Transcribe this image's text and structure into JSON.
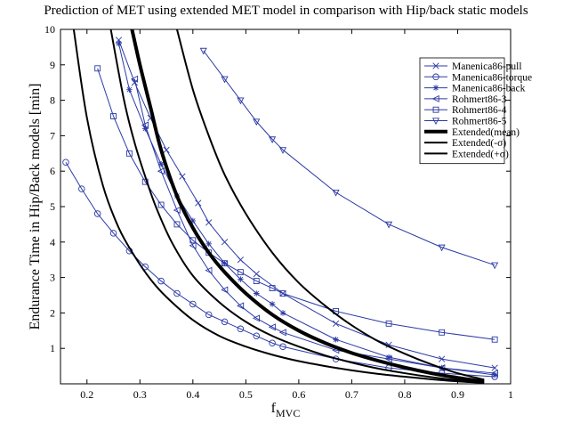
{
  "chart_data": {
    "type": "line",
    "title": "Prediction of MET using extended MET model in comparison with Hip/back static models",
    "xlabel": "f",
    "xlabel_sub": "MVC",
    "ylabel": "Endurance Time in Hip/Back models [min]",
    "xlim": [
      0.15,
      1.0
    ],
    "ylim": [
      0,
      10
    ],
    "xticks": [
      0.2,
      0.3,
      0.4,
      0.5,
      0.6,
      0.7,
      0.8,
      0.9,
      1
    ],
    "yticks": [
      1,
      2,
      3,
      4,
      5,
      6,
      7,
      8,
      9,
      10
    ],
    "xtick_labels": [
      "0.2",
      "0.3",
      "0.4",
      "0.5",
      "0.6",
      "0.7",
      "0.8",
      "0.9",
      "1"
    ],
    "ytick_labels": [
      "1",
      "2",
      "3",
      "4",
      "5",
      "6",
      "7",
      "8",
      "9",
      "10"
    ],
    "grid": false,
    "legend_position": "top-right",
    "colors": {
      "model_series": "#2b3aa6",
      "extended": "#000000"
    },
    "series": [
      {
        "name": "Manenica86-pull",
        "marker": "x",
        "color": "#2b3aa6",
        "width": 1,
        "x": [
          0.26,
          0.29,
          0.32,
          0.35,
          0.38,
          0.41,
          0.43,
          0.46,
          0.49,
          0.52,
          0.57,
          0.67,
          0.77,
          0.87,
          0.97
        ],
        "y": [
          9.7,
          8.5,
          7.5,
          6.6,
          5.85,
          5.1,
          4.55,
          4.0,
          3.5,
          3.1,
          2.55,
          1.7,
          1.1,
          0.7,
          0.45
        ]
      },
      {
        "name": "Manenica86-torque",
        "marker": "circle",
        "color": "#2b3aa6",
        "width": 1,
        "x": [
          0.16,
          0.19,
          0.22,
          0.25,
          0.28,
          0.31,
          0.34,
          0.37,
          0.4,
          0.43,
          0.46,
          0.49,
          0.52,
          0.55,
          0.57,
          0.67,
          0.77,
          0.87,
          0.97
        ],
        "y": [
          6.25,
          5.5,
          4.8,
          4.25,
          3.75,
          3.3,
          2.9,
          2.55,
          2.25,
          1.95,
          1.75,
          1.55,
          1.35,
          1.15,
          1.05,
          0.7,
          0.45,
          0.3,
          0.2
        ]
      },
      {
        "name": "Manenica86-back",
        "marker": "asterisk",
        "color": "#2b3aa6",
        "width": 1,
        "x": [
          0.26,
          0.28,
          0.31,
          0.34,
          0.37,
          0.4,
          0.43,
          0.46,
          0.49,
          0.52,
          0.55,
          0.57,
          0.67,
          0.77,
          0.87,
          0.97
        ],
        "y": [
          9.6,
          8.3,
          7.2,
          6.2,
          5.3,
          4.6,
          3.95,
          3.4,
          2.95,
          2.55,
          2.25,
          2.0,
          1.25,
          0.75,
          0.45,
          0.25
        ]
      },
      {
        "name": "Rohmert86-3",
        "marker": "triangle-left",
        "color": "#2b3aa6",
        "width": 1,
        "x": [
          0.29,
          0.31,
          0.34,
          0.37,
          0.4,
          0.43,
          0.46,
          0.49,
          0.52,
          0.55,
          0.57,
          0.67,
          0.77,
          0.87,
          0.97
        ],
        "y": [
          8.6,
          7.3,
          6.0,
          4.9,
          3.9,
          3.2,
          2.65,
          2.2,
          1.85,
          1.6,
          1.45,
          0.95,
          0.7,
          0.45,
          0.3
        ]
      },
      {
        "name": "Rohmert86-4",
        "marker": "square",
        "color": "#2b3aa6",
        "width": 1,
        "x": [
          0.22,
          0.25,
          0.28,
          0.31,
          0.34,
          0.37,
          0.4,
          0.43,
          0.46,
          0.49,
          0.52,
          0.55,
          0.57,
          0.67,
          0.77,
          0.87,
          0.97
        ],
        "y": [
          8.9,
          7.55,
          6.5,
          5.7,
          5.05,
          4.5,
          4.05,
          3.7,
          3.4,
          3.15,
          2.9,
          2.7,
          2.55,
          2.05,
          1.7,
          1.45,
          1.25
        ]
      },
      {
        "name": "Rohmert86-5",
        "marker": "triangle-down",
        "color": "#2b3aa6",
        "width": 1,
        "x": [
          0.42,
          0.46,
          0.49,
          0.52,
          0.55,
          0.57,
          0.67,
          0.77,
          0.87,
          0.97
        ],
        "y": [
          9.4,
          8.6,
          8.0,
          7.4,
          6.9,
          6.6,
          5.4,
          4.5,
          3.85,
          3.35
        ]
      },
      {
        "name": "Extended(mean)",
        "marker": "none",
        "color": "#000000",
        "width": 4,
        "x": [
          0.285,
          0.3,
          0.32,
          0.34,
          0.37,
          0.4,
          0.43,
          0.46,
          0.5,
          0.55,
          0.6,
          0.65,
          0.7,
          0.75,
          0.8,
          0.85,
          0.9,
          0.95
        ],
        "y": [
          10.0,
          9.0,
          7.8,
          6.6,
          5.3,
          4.4,
          3.7,
          3.15,
          2.55,
          1.95,
          1.5,
          1.15,
          0.87,
          0.65,
          0.46,
          0.3,
          0.17,
          0.06
        ]
      },
      {
        "name": "Extended(-σ)",
        "marker": "none",
        "color": "#000000",
        "width": 2,
        "x": [
          0.175,
          0.2,
          0.23,
          0.26,
          0.29,
          0.32,
          0.35,
          0.4,
          0.45,
          0.5,
          0.55,
          0.6,
          0.65,
          0.7,
          0.75,
          0.8,
          0.85,
          0.9,
          0.95
        ],
        "y": [
          10.0,
          7.5,
          5.6,
          4.4,
          3.6,
          2.95,
          2.45,
          1.8,
          1.35,
          1.05,
          0.82,
          0.64,
          0.5,
          0.38,
          0.28,
          0.2,
          0.13,
          0.07,
          0.03
        ]
      },
      {
        "name": "Extended(+σ)",
        "marker": "none",
        "color": "#000000",
        "width": 2,
        "x": [
          0.37,
          0.4,
          0.43,
          0.46,
          0.5,
          0.55,
          0.6,
          0.65,
          0.7,
          0.75,
          0.8,
          0.85,
          0.9,
          0.95
        ],
        "y": [
          10.0,
          8.3,
          7.0,
          5.9,
          4.8,
          3.7,
          2.85,
          2.2,
          1.65,
          1.2,
          0.85,
          0.55,
          0.3,
          0.12
        ]
      },
      {
        "name": "",
        "marker": "none",
        "color": "#000000",
        "width": 2,
        "x": [
          0.245,
          0.27,
          0.29,
          0.31,
          0.33,
          0.36,
          0.4,
          0.45,
          0.5,
          0.55,
          0.6,
          0.65,
          0.7,
          0.75,
          0.8,
          0.85,
          0.9,
          0.95
        ],
        "y": [
          10.0,
          8.0,
          6.8,
          5.85,
          5.0,
          4.0,
          3.05,
          2.3,
          1.75,
          1.35,
          1.05,
          0.8,
          0.6,
          0.43,
          0.3,
          0.19,
          0.1,
          0.04
        ]
      }
    ]
  }
}
